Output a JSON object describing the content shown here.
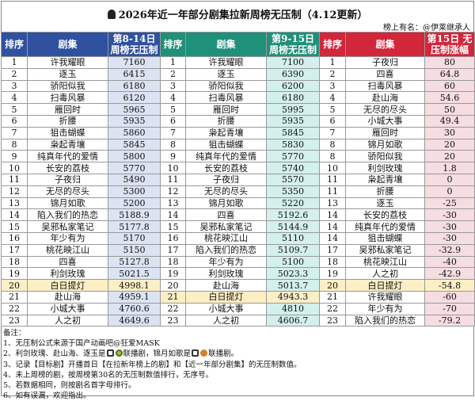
{
  "title": "2026年近一年部分剧集拉新周榜无压制（4.12更新）",
  "credit": "榜上有名：@伊莱继承人",
  "headers": {
    "rank": "排序",
    "drama": "剧集",
    "col1_value": "第8-14日 周榜无压制",
    "col2_value": "第9-15日 周榜无压制",
    "col3_value": "第15日 无压制涨幅"
  },
  "colors": {
    "blue": "#2f51a0",
    "green": "#1f9079",
    "red": "#d2263b",
    "highlight": "#fcefc6"
  },
  "highlight_drama": "白日提灯",
  "table1": [
    [
      "1",
      "许我耀眼",
      "7160"
    ],
    [
      "2",
      "逐玉",
      "6415"
    ],
    [
      "3",
      "骄阳似我",
      "6180"
    ],
    [
      "4",
      "扫毒风暴",
      "6120"
    ],
    [
      "5",
      "雁回时",
      "5965"
    ],
    [
      "6",
      "折腰",
      "5935"
    ],
    [
      "7",
      "狙击蝴蝶",
      "5860"
    ],
    [
      "8",
      "枭起青壤",
      "5845"
    ],
    [
      "9",
      "纯真年代的爱情",
      "5800"
    ],
    [
      "10",
      "长安的荔枝",
      "5770"
    ],
    [
      "11",
      "子夜归",
      "5490"
    ],
    [
      "12",
      "无尽的尽头",
      "5300"
    ],
    [
      "13",
      "锦月如歌",
      "5200"
    ],
    [
      "14",
      "陷入我们的热恋",
      "5188.9"
    ],
    [
      "15",
      "吴邪私家笔记",
      "5177.8"
    ],
    [
      "16",
      "年少有为",
      "5170"
    ],
    [
      "17",
      "桃花映江山",
      "5150"
    ],
    [
      "18",
      "四喜",
      "5127.8"
    ],
    [
      "19",
      "利剑玫瑰",
      "5021.5"
    ],
    [
      "20",
      "白日提灯",
      "4998.1"
    ],
    [
      "21",
      "赴山海",
      "4959.1"
    ],
    [
      "22",
      "小城大事",
      "4760.6"
    ],
    [
      "23",
      "人之初",
      "4649.6"
    ]
  ],
  "table2": [
    [
      "1",
      "许我耀眼",
      "7100"
    ],
    [
      "2",
      "逐玉",
      "6390"
    ],
    [
      "3",
      "骄阳似我",
      "6200"
    ],
    [
      "4",
      "扫毒风暴",
      "6180"
    ],
    [
      "5",
      "雁回时",
      "5995"
    ],
    [
      "6",
      "折腰",
      "5935"
    ],
    [
      "7",
      "枭起青壤",
      "5845"
    ],
    [
      "8",
      "狙击蝴蝶",
      "5830"
    ],
    [
      "9",
      "纯真年代的爱情",
      "5770"
    ],
    [
      "10",
      "长安的荔枝",
      "5740"
    ],
    [
      "11",
      "子夜归",
      "5570"
    ],
    [
      "12",
      "无尽的尽头",
      "5350"
    ],
    [
      "13",
      "锦月如歌",
      "5220"
    ],
    [
      "14",
      "四喜",
      "5192.6"
    ],
    [
      "15",
      "吴邪私家笔记",
      "5144.9"
    ],
    [
      "16",
      "桃花映江山",
      "5110"
    ],
    [
      "17",
      "陷入我们的热恋",
      "5109.7"
    ],
    [
      "18",
      "年少有为",
      "5100"
    ],
    [
      "19",
      "利剑玫瑰",
      "5023.3"
    ],
    [
      "20",
      "赴山海",
      "5013.7"
    ],
    [
      "21",
      "白日提灯",
      "4943.3"
    ],
    [
      "22",
      "小城大事",
      "4810"
    ],
    [
      "23",
      "人之初",
      "4606.7"
    ]
  ],
  "table3": [
    [
      "1",
      "子夜归",
      "80"
    ],
    [
      "2",
      "四喜",
      "64.8"
    ],
    [
      "3",
      "扫毒风暴",
      "60"
    ],
    [
      "4",
      "赴山海",
      "54.6"
    ],
    [
      "5",
      "无尽的尽头",
      "50"
    ],
    [
      "6",
      "小城大事",
      "49.4"
    ],
    [
      "7",
      "雁回时",
      "30"
    ],
    [
      "8",
      "锦月如歌",
      "20"
    ],
    [
      "8",
      "骄阳似我",
      "20"
    ],
    [
      "10",
      "利剑玫瑰",
      "1.8"
    ],
    [
      "11",
      "枭起青壤",
      "0"
    ],
    [
      "11",
      "折腰",
      "0"
    ],
    [
      "13",
      "逐玉",
      "-25"
    ],
    [
      "14",
      "长安的荔枝",
      "-30"
    ],
    [
      "14",
      "纯真年代的爱情",
      "-30"
    ],
    [
      "14",
      "狙击蝴蝶",
      "-30"
    ],
    [
      "17",
      "吴邪私家笔记",
      "-32.9"
    ],
    [
      "18",
      "桃花映江山",
      "-40"
    ],
    [
      "19",
      "人之初",
      "-42.9"
    ],
    [
      "20",
      "白日提灯",
      "-54.8"
    ],
    [
      "21",
      "许我耀眼",
      "-60"
    ],
    [
      "22",
      "年少有为",
      "-70"
    ],
    [
      "23",
      "陷入我们的热恋",
      "-79.2"
    ]
  ],
  "notes": {
    "heading": "备注：",
    "n1": "1、无压制公式来源于国产动画吧@狂爱MASK",
    "n2a": "2、利剑玫瑰、赴山海、逐玉是",
    "n2b": "联播剧，锦月如歌是",
    "n2c": "联播剧。",
    "n3": "3、记录【目标剧】开播首日【在拉新年榜上的剧】和【近一年部分剧集】的无压制数值。",
    "n4": "4、未上周榜的剧，按周榜第30名的无压制数值排行，无序号。",
    "n5": "5、若数据相同，则按剧名首字母排行。",
    "n6": "6、如有误漏，欢迎指出。"
  }
}
